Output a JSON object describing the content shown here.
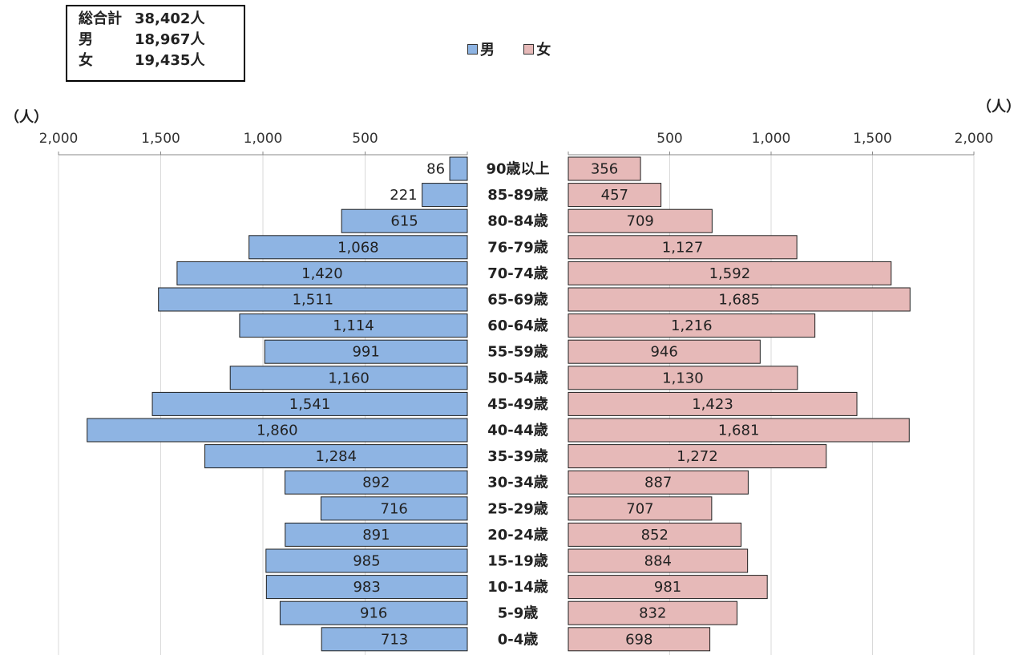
{
  "summary": {
    "total_label": "総合計",
    "total_value": "38,402人",
    "male_label": "男",
    "male_value": "18,967人",
    "female_label": "女",
    "female_value": "19,435人"
  },
  "legend": {
    "male": "男",
    "female": "女"
  },
  "colors": {
    "male": "#8EB4E3",
    "female": "#E6B9B8",
    "border": "#1F1F1F",
    "grid": "#D9D9D9"
  },
  "chart_data": {
    "type": "bar",
    "orientation": "horizontal-back-to-back",
    "unit_label_left": "（人）",
    "unit_label_right": "（人）",
    "xlim": [
      0,
      2000
    ],
    "tick_values": [
      0,
      500,
      1000,
      1500,
      2000
    ],
    "tick_labels_left": [
      "2,000",
      "1,500",
      "1,000",
      "500"
    ],
    "tick_labels_right": [
      "500",
      "1,000",
      "1,500",
      "2,000"
    ],
    "grid": true,
    "legend_position": "top-center",
    "categories": [
      "90歳以上",
      "85-89歳",
      "80-84歳",
      "76-79歳",
      "70-74歳",
      "65-69歳",
      "60-64歳",
      "55-59歳",
      "50-54歳",
      "45-49歳",
      "40-44歳",
      "35-39歳",
      "30-34歳",
      "25-29歳",
      "20-24歳",
      "15-19歳",
      "10-14歳",
      "5-9歳",
      "0-4歳"
    ],
    "series": [
      {
        "name": "男",
        "side": "left",
        "values": [
          86,
          221,
          615,
          1068,
          1420,
          1511,
          1114,
          991,
          1160,
          1541,
          1860,
          1284,
          892,
          716,
          891,
          985,
          983,
          916,
          713
        ],
        "labels": [
          "86",
          "221",
          "615",
          "1,068",
          "1,420",
          "1,511",
          "1,114",
          "991",
          "1,160",
          "1,541",
          "1,860",
          "1,284",
          "892",
          "716",
          "891",
          "985",
          "983",
          "916",
          "713"
        ]
      },
      {
        "name": "女",
        "side": "right",
        "values": [
          356,
          457,
          709,
          1127,
          1592,
          1685,
          1216,
          946,
          1130,
          1423,
          1681,
          1272,
          887,
          707,
          852,
          884,
          981,
          832,
          698
        ],
        "labels": [
          "356",
          "457",
          "709",
          "1,127",
          "1,592",
          "1,685",
          "1,216",
          "946",
          "1,130",
          "1,423",
          "1,681",
          "1,272",
          "887",
          "707",
          "852",
          "884",
          "981",
          "832",
          "698"
        ]
      }
    ]
  }
}
